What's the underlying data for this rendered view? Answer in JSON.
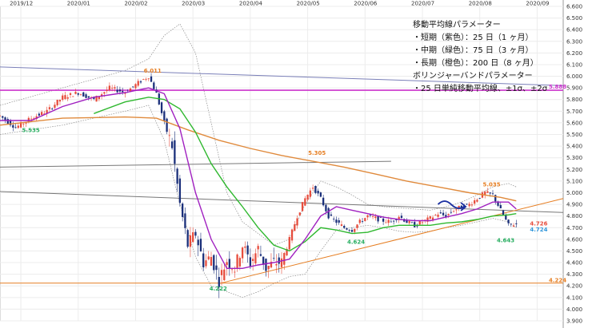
{
  "chart_data": {
    "type": "candlestick",
    "x_ticks": [
      "2019/12",
      "2020/01",
      "2020/02",
      "2020/03",
      "2020/04",
      "2020/05",
      "2020/06",
      "2020/07",
      "2020/08",
      "2020/09"
    ],
    "y_ticks": [
      "6.600",
      "6.500",
      "6.400",
      "6.300",
      "6.200",
      "6.100",
      "6.000",
      "5.900",
      "5.800",
      "5.700",
      "5.600",
      "5.500",
      "5.400",
      "5.300",
      "5.200",
      "5.100",
      "5.000",
      "4.900",
      "4.800",
      "4.700",
      "4.600",
      "4.500",
      "4.400",
      "4.300",
      "4.200",
      "4.100",
      "4.000",
      "3.900"
    ],
    "ylim": [
      3.9,
      6.6
    ],
    "x_index_range": [
      0,
      216
    ],
    "legend": [
      "移動平均線パラメーター",
      "・短期（紫色）：25 日（1 ヶ月）",
      "・中期（緑色）：75 日（3 ヶ月）",
      "・長期（橙色）：200 日（8 ヶ月）",
      "ボリンジャーバンドパラメーター",
      "・25 日単純移動平均線、±1σ、±2σ"
    ],
    "annotations": [
      {
        "text": "6.011",
        "x": 57,
        "y": 6.011,
        "color": "#e67e22"
      },
      {
        "text": "5.535",
        "x": 6,
        "y": 5.535,
        "color": "#27ae60"
      },
      {
        "text": "5.305",
        "x": 120,
        "y": 5.305,
        "color": "#e67e22"
      },
      {
        "text": "4.222",
        "x": 84,
        "y": 4.222,
        "color": "#27ae60"
      },
      {
        "text": "4.624",
        "x": 135,
        "y": 4.624,
        "color": "#27ae60"
      },
      {
        "text": "5.035",
        "x": 187,
        "y": 5.035,
        "color": "#e67e22"
      },
      {
        "text": "4.643",
        "x": 193,
        "y": 4.643,
        "color": "#27ae60"
      },
      {
        "text": "4.726",
        "x": 202,
        "y": 4.726,
        "color": "#e74c3c"
      },
      {
        "text": "4.724",
        "x": 202,
        "y": 4.724,
        "color": "#3498db"
      },
      {
        "text": "5.888",
        "x": 214,
        "y": 5.888,
        "color": "#cc33cc"
      },
      {
        "text": "4.224",
        "x": 214,
        "y": 4.224,
        "color": "#e67e22"
      }
    ],
    "price_path": [
      [
        0,
        5.66
      ],
      [
        6,
        5.56
      ],
      [
        12,
        5.64
      ],
      [
        18,
        5.7
      ],
      [
        24,
        5.82
      ],
      [
        30,
        5.86
      ],
      [
        36,
        5.8
      ],
      [
        42,
        5.9
      ],
      [
        48,
        5.86
      ],
      [
        54,
        5.96
      ],
      [
        57,
        6.0
      ],
      [
        60,
        5.85
      ],
      [
        63,
        5.6
      ],
      [
        66,
        5.4
      ],
      [
        69,
        4.9
      ],
      [
        72,
        4.55
      ],
      [
        75,
        4.65
      ],
      [
        78,
        4.4
      ],
      [
        81,
        4.45
      ],
      [
        84,
        4.25
      ],
      [
        87,
        4.42
      ],
      [
        90,
        4.35
      ],
      [
        93,
        4.55
      ],
      [
        96,
        4.4
      ],
      [
        99,
        4.52
      ],
      [
        102,
        4.35
      ],
      [
        105,
        4.4
      ],
      [
        108,
        4.4
      ],
      [
        111,
        4.6
      ],
      [
        114,
        4.8
      ],
      [
        117,
        4.95
      ],
      [
        120,
        5.05
      ],
      [
        123,
        4.95
      ],
      [
        126,
        4.8
      ],
      [
        129,
        4.75
      ],
      [
        132,
        4.7
      ],
      [
        135,
        4.68
      ],
      [
        138,
        4.75
      ],
      [
        141,
        4.8
      ],
      [
        144,
        4.78
      ],
      [
        147,
        4.76
      ],
      [
        150,
        4.75
      ],
      [
        153,
        4.8
      ],
      [
        156,
        4.75
      ],
      [
        159,
        4.72
      ],
      [
        162,
        4.75
      ],
      [
        165,
        4.78
      ],
      [
        168,
        4.82
      ],
      [
        171,
        4.8
      ],
      [
        174,
        4.85
      ],
      [
        177,
        4.88
      ],
      [
        180,
        4.9
      ],
      [
        183,
        4.95
      ],
      [
        186,
        5.0
      ],
      [
        189,
        4.98
      ],
      [
        192,
        4.85
      ],
      [
        195,
        4.72
      ],
      [
        198,
        4.73
      ]
    ],
    "ma25_path": [
      [
        0,
        5.62
      ],
      [
        12,
        5.62
      ],
      [
        24,
        5.74
      ],
      [
        36,
        5.82
      ],
      [
        48,
        5.86
      ],
      [
        57,
        5.9
      ],
      [
        63,
        5.85
      ],
      [
        69,
        5.55
      ],
      [
        75,
        5.0
      ],
      [
        81,
        4.6
      ],
      [
        87,
        4.35
      ],
      [
        93,
        4.35
      ],
      [
        99,
        4.38
      ],
      [
        105,
        4.4
      ],
      [
        111,
        4.43
      ],
      [
        117,
        4.6
      ],
      [
        123,
        4.8
      ],
      [
        129,
        4.88
      ],
      [
        135,
        4.85
      ],
      [
        141,
        4.82
      ],
      [
        147,
        4.79
      ],
      [
        153,
        4.77
      ],
      [
        159,
        4.76
      ],
      [
        165,
        4.76
      ],
      [
        171,
        4.79
      ],
      [
        177,
        4.82
      ],
      [
        183,
        4.86
      ],
      [
        189,
        4.92
      ],
      [
        195,
        4.92
      ],
      [
        198,
        4.86
      ]
    ],
    "ma75_path": [
      [
        36,
        5.68
      ],
      [
        48,
        5.78
      ],
      [
        57,
        5.82
      ],
      [
        63,
        5.8
      ],
      [
        69,
        5.72
      ],
      [
        75,
        5.52
      ],
      [
        81,
        5.25
      ],
      [
        87,
        5.05
      ],
      [
        93,
        4.88
      ],
      [
        99,
        4.7
      ],
      [
        105,
        4.55
      ],
      [
        111,
        4.5
      ],
      [
        117,
        4.58
      ],
      [
        123,
        4.7
      ],
      [
        129,
        4.68
      ],
      [
        135,
        4.65
      ],
      [
        141,
        4.66
      ],
      [
        147,
        4.7
      ],
      [
        153,
        4.72
      ],
      [
        159,
        4.72
      ],
      [
        165,
        4.72
      ],
      [
        171,
        4.74
      ],
      [
        177,
        4.75
      ],
      [
        183,
        4.77
      ],
      [
        189,
        4.8
      ],
      [
        195,
        4.81
      ],
      [
        198,
        4.82
      ]
    ],
    "ma200_path": [
      [
        0,
        5.58
      ],
      [
        24,
        5.64
      ],
      [
        48,
        5.65
      ],
      [
        60,
        5.64
      ],
      [
        72,
        5.54
      ],
      [
        84,
        5.45
      ],
      [
        96,
        5.38
      ],
      [
        108,
        5.32
      ],
      [
        120,
        5.27
      ],
      [
        132,
        5.22
      ],
      [
        144,
        5.16
      ],
      [
        156,
        5.1
      ],
      [
        168,
        5.05
      ],
      [
        180,
        5.0
      ],
      [
        192,
        4.96
      ],
      [
        198,
        4.93
      ]
    ],
    "bb_upper_path": [
      [
        0,
        5.75
      ],
      [
        24,
        5.9
      ],
      [
        48,
        6.05
      ],
      [
        57,
        6.15
      ],
      [
        63,
        6.35
      ],
      [
        69,
        6.45
      ],
      [
        75,
        6.2
      ],
      [
        81,
        5.6
      ],
      [
        87,
        5.0
      ],
      [
        93,
        4.75
      ],
      [
        99,
        4.65
      ],
      [
        105,
        4.55
      ],
      [
        111,
        4.6
      ],
      [
        117,
        4.9
      ],
      [
        123,
        5.1
      ],
      [
        129,
        5.05
      ],
      [
        135,
        4.98
      ],
      [
        141,
        4.9
      ],
      [
        147,
        4.88
      ],
      [
        153,
        4.87
      ],
      [
        159,
        4.86
      ],
      [
        165,
        4.85
      ],
      [
        171,
        4.88
      ],
      [
        177,
        4.92
      ],
      [
        183,
        4.98
      ],
      [
        189,
        5.05
      ],
      [
        195,
        5.08
      ],
      [
        198,
        5.05
      ]
    ],
    "bb_lower_path": [
      [
        0,
        5.5
      ],
      [
        24,
        5.58
      ],
      [
        48,
        5.7
      ],
      [
        57,
        5.75
      ],
      [
        63,
        5.45
      ],
      [
        69,
        4.9
      ],
      [
        75,
        4.45
      ],
      [
        81,
        4.2
      ],
      [
        87,
        4.15
      ],
      [
        93,
        4.1
      ],
      [
        99,
        4.15
      ],
      [
        105,
        4.22
      ],
      [
        111,
        4.28
      ],
      [
        117,
        4.3
      ],
      [
        123,
        4.5
      ],
      [
        129,
        4.68
      ],
      [
        135,
        4.7
      ],
      [
        141,
        4.72
      ],
      [
        147,
        4.7
      ],
      [
        153,
        4.67
      ],
      [
        159,
        4.66
      ],
      [
        165,
        4.67
      ],
      [
        171,
        4.7
      ],
      [
        177,
        4.72
      ],
      [
        183,
        4.75
      ],
      [
        189,
        4.78
      ],
      [
        195,
        4.75
      ],
      [
        198,
        4.7
      ]
    ],
    "trend_lines": [
      {
        "from": [
          0,
          6.08
        ],
        "to": [
          216,
          5.92
        ],
        "color": "#7a7fb8"
      },
      {
        "from": [
          0,
          5.88
        ],
        "to": [
          216,
          5.88
        ],
        "color": "#cc33cc"
      },
      {
        "from": [
          0,
          5.22
        ],
        "to": [
          150,
          5.27
        ],
        "color": "#777777"
      },
      {
        "from": [
          0,
          5.01
        ],
        "to": [
          216,
          4.83
        ],
        "color": "#777777"
      },
      {
        "from": [
          84,
          4.22
        ],
        "to": [
          216,
          4.95
        ],
        "color": "#e67e22"
      },
      {
        "from": [
          0,
          4.224
        ],
        "to": [
          216,
          4.224
        ],
        "color": "#e67e22"
      }
    ],
    "forecast_arrow": {
      "from": [
        168,
        4.9
      ],
      "to": [
        178,
        4.88
      ],
      "color": "#1a2fa0"
    }
  }
}
